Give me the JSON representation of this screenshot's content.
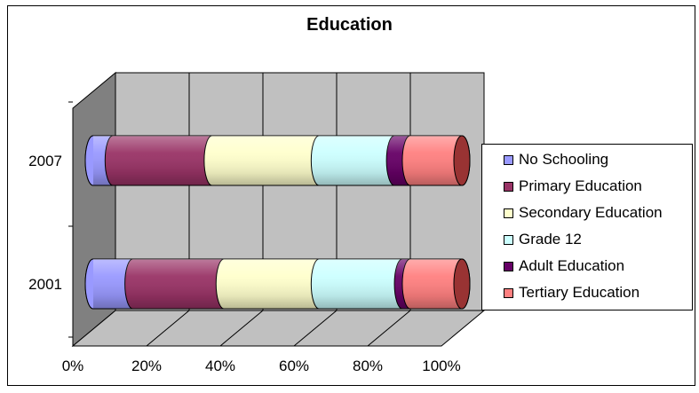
{
  "chart_data": {
    "type": "bar",
    "orientation": "horizontal-stacked-100",
    "title": "Education",
    "categories": [
      "2001",
      "2007"
    ],
    "series": [
      {
        "name": "No Schooling",
        "color": "#9999ff",
        "values": [
          10,
          5
        ]
      },
      {
        "name": "Primary Education",
        "color": "#993366",
        "values": [
          23,
          25
        ]
      },
      {
        "name": "Secondary Education",
        "color": "#ffffcc",
        "values": [
          24,
          27
        ]
      },
      {
        "name": "Grade 12",
        "color": "#ccffff",
        "values": [
          21,
          19
        ]
      },
      {
        "name": "Adult Education",
        "color": "#660066",
        "values": [
          2,
          4
        ]
      },
      {
        "name": "Tertiary Education",
        "color": "#ff8080",
        "values": [
          13,
          13
        ]
      }
    ],
    "x_ticks": [
      "0%",
      "20%",
      "40%",
      "60%",
      "80%",
      "100%"
    ],
    "xlim": [
      0,
      100
    ],
    "grid": true,
    "legend_position": "right"
  }
}
